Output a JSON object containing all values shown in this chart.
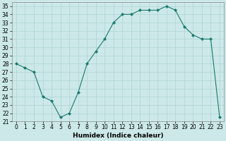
{
  "x": [
    0,
    1,
    2,
    3,
    4,
    5,
    6,
    7,
    8,
    9,
    10,
    11,
    12,
    13,
    14,
    15,
    16,
    17,
    18,
    19,
    20,
    21,
    22,
    23
  ],
  "y": [
    28,
    27.5,
    27,
    24,
    23.5,
    21.5,
    22,
    24.5,
    28,
    29.5,
    31,
    33,
    34,
    34,
    34.5,
    34.5,
    34.5,
    35,
    34.5,
    32.5,
    31.5,
    31,
    31,
    21.5
  ],
  "line_color": "#1a7a6e",
  "marker": "D",
  "marker_size": 2,
  "bg_color": "#cce8e8",
  "grid_color": "#afd4d4",
  "xlabel": "Humidex (Indice chaleur)",
  "ylim": [
    21,
    35.5
  ],
  "yticks": [
    21,
    22,
    23,
    24,
    25,
    26,
    27,
    28,
    29,
    30,
    31,
    32,
    33,
    34,
    35
  ],
  "xlim": [
    -0.5,
    23.5
  ],
  "xticks": [
    0,
    1,
    2,
    3,
    4,
    5,
    6,
    7,
    8,
    9,
    10,
    11,
    12,
    13,
    14,
    15,
    16,
    17,
    18,
    19,
    20,
    21,
    22,
    23
  ],
  "xlabel_fontsize": 6.5,
  "tick_fontsize": 5.5
}
